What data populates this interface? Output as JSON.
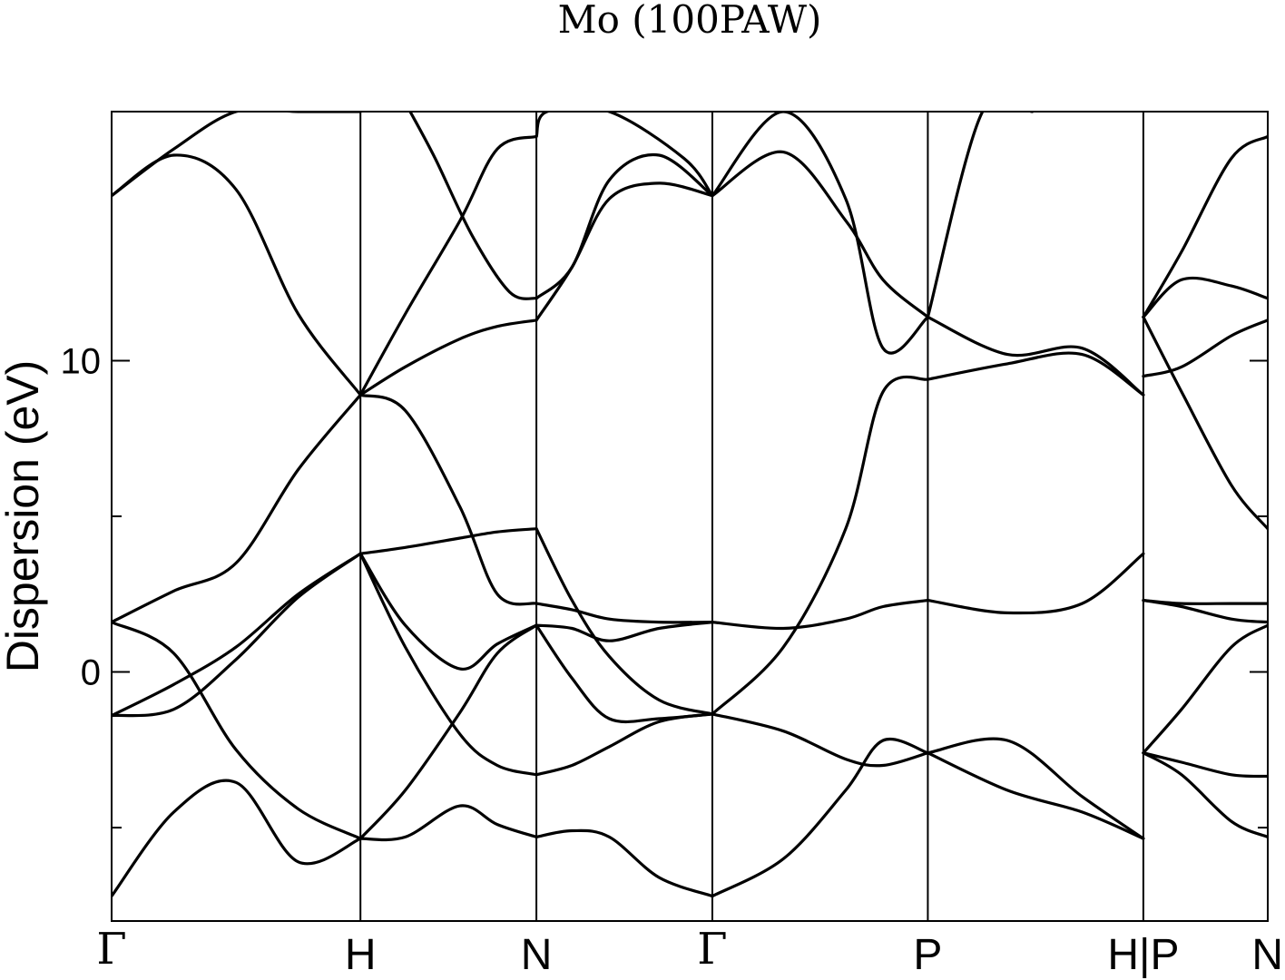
{
  "chart_data": {
    "type": "line",
    "title": "Mo (100PAW)",
    "ylabel": "Dispersion (eV)",
    "ylim": [
      -8.0,
      18.0
    ],
    "yticks": [
      {
        "value": 10,
        "label": "10"
      },
      {
        "value": 0,
        "label": "0"
      }
    ],
    "yticks_minor": [
      5,
      -5
    ],
    "grid": false,
    "legend": "none",
    "line_color": "#000000",
    "kpoints": [
      {
        "label": "Γ",
        "x": 0.0
      },
      {
        "label": "H",
        "x": 1.0
      },
      {
        "label": "N",
        "x": 1.7071
      },
      {
        "label": "Γ",
        "x": 2.4142
      },
      {
        "label": "P",
        "x": 3.2802
      },
      {
        "label": "H|P",
        "x": 4.1463
      },
      {
        "label": "N",
        "x": 4.6463
      }
    ],
    "series": [
      {
        "segment": "Γ-H",
        "x": [
          0,
          0.25,
          0.5,
          0.75,
          1.0
        ],
        "y": [
          -7.2,
          -4.5,
          -3.55,
          -6.1,
          -5.35
        ]
      },
      {
        "segment": "Γ-H",
        "x": [
          0,
          0.25,
          0.5,
          0.75,
          1.0
        ],
        "y": [
          1.6,
          0.6,
          -2.5,
          -4.4,
          -5.35
        ]
      },
      {
        "segment": "Γ-H",
        "x": [
          0,
          0.25,
          0.5,
          0.75,
          1.0
        ],
        "y": [
          -1.4,
          -1.2,
          0.4,
          2.4,
          3.8
        ]
      },
      {
        "segment": "Γ-H",
        "x": [
          0,
          0.25,
          0.5,
          0.75,
          1.0
        ],
        "y": [
          -1.4,
          -0.4,
          0.8,
          2.5,
          3.8
        ]
      },
      {
        "segment": "Γ-H",
        "x": [
          0,
          0.25,
          0.5,
          0.75,
          1.0
        ],
        "y": [
          1.6,
          2.6,
          3.5,
          6.5,
          8.9
        ]
      },
      {
        "segment": "Γ-H",
        "x": [
          0,
          0.25,
          0.5,
          0.75,
          1.0
        ],
        "y": [
          15.3,
          16.6,
          15.5,
          11.5,
          8.9
        ]
      },
      {
        "segment": "Γ-H",
        "x": [
          0,
          0.25,
          0.5,
          0.75,
          1.0
        ],
        "y": [
          15.3,
          16.8,
          18.0,
          18.0,
          18.0
        ]
      },
      {
        "segment": "H-N",
        "x": [
          1.0,
          1.18,
          1.4,
          1.55,
          1.7071
        ],
        "y": [
          -5.35,
          -5.3,
          -4.3,
          -4.9,
          -5.3
        ]
      },
      {
        "segment": "H-N",
        "x": [
          1.0,
          1.18,
          1.4,
          1.55,
          1.7071
        ],
        "y": [
          -5.35,
          -3.8,
          -1.3,
          0.6,
          1.5
        ]
      },
      {
        "segment": "H-N",
        "x": [
          1.0,
          1.18,
          1.4,
          1.55,
          1.7071
        ],
        "y": [
          3.8,
          0.8,
          -2.0,
          -3.0,
          -3.3
        ]
      },
      {
        "segment": "H-N",
        "x": [
          1.0,
          1.18,
          1.4,
          1.55,
          1.7071
        ],
        "y": [
          3.8,
          1.5,
          0.1,
          0.9,
          1.5
        ]
      },
      {
        "segment": "H-N",
        "x": [
          1.0,
          1.18,
          1.4,
          1.55,
          1.7071
        ],
        "y": [
          3.8,
          4.0,
          4.3,
          4.5,
          4.6
        ]
      },
      {
        "segment": "H-N",
        "x": [
          1.0,
          1.18,
          1.4,
          1.55,
          1.7071
        ],
        "y": [
          8.9,
          8.4,
          5.3,
          2.5,
          2.2
        ]
      },
      {
        "segment": "H-N",
        "x": [
          1.0,
          1.18,
          1.4,
          1.55,
          1.7071
        ],
        "y": [
          8.9,
          9.8,
          10.7,
          11.1,
          11.3
        ]
      },
      {
        "segment": "H-N",
        "x": [
          1.0,
          1.18,
          1.4,
          1.55,
          1.7071
        ],
        "y": [
          8.9,
          11.5,
          14.5,
          16.8,
          17.2
        ]
      },
      {
        "segment": "H-N",
        "x": [
          1.2,
          1.3,
          1.45,
          1.6,
          1.7071
        ],
        "y": [
          18.0,
          16.5,
          14.0,
          12.2,
          12.0
        ]
      },
      {
        "segment": "N-Γ",
        "x": [
          1.7071,
          1.85,
          2.0,
          2.2,
          2.4142
        ],
        "y": [
          -5.3,
          -5.1,
          -5.3,
          -6.6,
          -7.2
        ]
      },
      {
        "segment": "N-Γ",
        "x": [
          1.7071,
          1.85,
          2.0,
          2.2,
          2.4142
        ],
        "y": [
          -3.3,
          -3.0,
          -2.4,
          -1.6,
          -1.35
        ]
      },
      {
        "segment": "N-Γ",
        "x": [
          1.7071,
          1.85,
          2.0,
          2.2,
          2.4142
        ],
        "y": [
          1.5,
          -0.2,
          -1.5,
          -1.5,
          -1.35
        ]
      },
      {
        "segment": "N-Γ",
        "x": [
          1.7071,
          1.85,
          2.0,
          2.2,
          2.4142
        ],
        "y": [
          4.6,
          2.3,
          0.5,
          -0.9,
          -1.35
        ]
      },
      {
        "segment": "N-Γ",
        "x": [
          1.7071,
          1.85,
          2.0,
          2.2,
          2.4142
        ],
        "y": [
          1.5,
          1.4,
          1.0,
          1.4,
          1.6
        ]
      },
      {
        "segment": "N-Γ",
        "x": [
          1.7071,
          1.85,
          2.0,
          2.2,
          2.4142
        ],
        "y": [
          2.2,
          2.0,
          1.7,
          1.6,
          1.6
        ]
      },
      {
        "segment": "N-Γ",
        "x": [
          1.7071,
          1.85,
          2.0,
          2.2,
          2.4142
        ],
        "y": [
          11.3,
          13.0,
          15.2,
          15.7,
          15.3
        ]
      },
      {
        "segment": "N-Γ",
        "x": [
          1.7071,
          1.85,
          2.0,
          2.2,
          2.4142
        ],
        "y": [
          12.0,
          13.0,
          15.8,
          16.6,
          15.3
        ]
      },
      {
        "segment": "N-Γ",
        "x": [
          1.7071,
          1.75,
          2.0,
          2.3,
          2.4142
        ],
        "y": [
          17.2,
          18.0,
          18.0,
          16.5,
          15.3
        ]
      },
      {
        "segment": "Γ-P",
        "x": [
          2.4142,
          2.7,
          2.95,
          3.1,
          3.2802
        ],
        "y": [
          -7.2,
          -6.0,
          -3.8,
          -2.2,
          -2.6
        ]
      },
      {
        "segment": "Γ-P",
        "x": [
          2.4142,
          2.7,
          2.95,
          3.1,
          3.2802
        ],
        "y": [
          -1.35,
          -1.9,
          -2.8,
          -3.0,
          -2.6
        ]
      },
      {
        "segment": "Γ-P",
        "x": [
          2.4142,
          2.7,
          2.95,
          3.1,
          3.2802
        ],
        "y": [
          -1.35,
          0.8,
          4.6,
          9.0,
          9.4
        ]
      },
      {
        "segment": "Γ-P",
        "x": [
          2.4142,
          2.7,
          2.95,
          3.1,
          3.2802
        ],
        "y": [
          1.6,
          1.4,
          1.7,
          2.1,
          2.3
        ]
      },
      {
        "segment": "Γ-P",
        "x": [
          2.4142,
          2.7,
          2.95,
          3.1,
          3.2802
        ],
        "y": [
          15.3,
          16.7,
          14.5,
          12.6,
          11.4
        ]
      },
      {
        "segment": "Γ-P",
        "x": [
          2.4142,
          2.7,
          2.95,
          3.1,
          3.2802
        ],
        "y": [
          15.3,
          18.0,
          15.2,
          10.4,
          11.4
        ]
      },
      {
        "segment": "P-H",
        "x": [
          3.2802,
          3.6,
          3.9,
          4.1463
        ],
        "y": [
          -2.6,
          -3.8,
          -4.5,
          -5.35
        ]
      },
      {
        "segment": "P-H",
        "x": [
          3.2802,
          3.6,
          3.9,
          4.1463
        ],
        "y": [
          -2.6,
          -2.2,
          -4.0,
          -5.35
        ]
      },
      {
        "segment": "P-H",
        "x": [
          3.2802,
          3.6,
          3.9,
          4.1463
        ],
        "y": [
          2.3,
          1.9,
          2.2,
          3.8
        ]
      },
      {
        "segment": "P-H",
        "x": [
          3.2802,
          3.6,
          3.9,
          4.1463
        ],
        "y": [
          9.4,
          9.9,
          10.2,
          8.9
        ]
      },
      {
        "segment": "P-H",
        "x": [
          3.2802,
          3.6,
          3.9,
          4.1463
        ],
        "y": [
          11.4,
          10.2,
          10.4,
          8.9
        ]
      },
      {
        "segment": "P-H",
        "x": [
          3.2802,
          3.5,
          3.7
        ],
        "y": [
          11.4,
          18.0,
          18.0
        ]
      },
      {
        "segment": "P-N",
        "x": [
          4.1463,
          4.3,
          4.5,
          4.6463
        ],
        "y": [
          -2.6,
          -2.9,
          -3.3,
          -3.35
        ]
      },
      {
        "segment": "P-N",
        "x": [
          4.1463,
          4.3,
          4.5,
          4.6463
        ],
        "y": [
          -2.6,
          -3.3,
          -4.8,
          -5.3
        ]
      },
      {
        "segment": "P-N",
        "x": [
          4.1463,
          4.3,
          4.5,
          4.6463
        ],
        "y": [
          -2.6,
          -1.2,
          0.8,
          1.5
        ]
      },
      {
        "segment": "P-N",
        "x": [
          4.1463,
          4.3,
          4.5,
          4.6463
        ],
        "y": [
          2.3,
          2.2,
          2.2,
          2.2
        ]
      },
      {
        "segment": "P-N",
        "x": [
          4.1463,
          4.3,
          4.5,
          4.6463
        ],
        "y": [
          2.3,
          2.1,
          1.7,
          1.6
        ]
      },
      {
        "segment": "P-N",
        "x": [
          4.1463,
          4.3,
          4.5,
          4.6463
        ],
        "y": [
          9.5,
          9.8,
          10.8,
          11.3
        ]
      },
      {
        "segment": "P-N",
        "x": [
          4.1463,
          4.3,
          4.5,
          4.6463
        ],
        "y": [
          11.4,
          12.6,
          12.4,
          12.0
        ]
      },
      {
        "segment": "P-N",
        "x": [
          4.1463,
          4.3,
          4.5,
          4.6463
        ],
        "y": [
          11.4,
          9.0,
          6.0,
          4.6
        ]
      },
      {
        "segment": "P-N",
        "x": [
          4.1463,
          4.3,
          4.5,
          4.6463
        ],
        "y": [
          11.4,
          13.5,
          16.5,
          17.2
        ]
      }
    ]
  }
}
